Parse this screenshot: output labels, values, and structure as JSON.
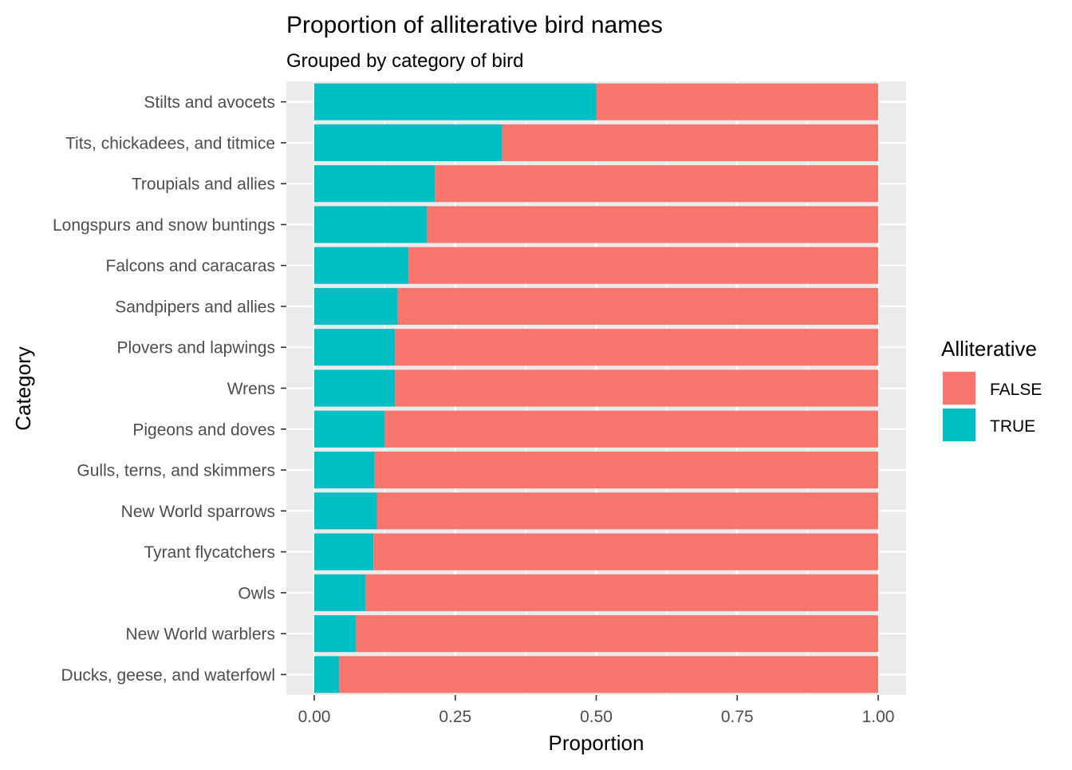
{
  "chart_data": {
    "type": "bar",
    "orientation": "horizontal",
    "stacked": true,
    "title": "Proportion of alliterative bird names",
    "subtitle": "Grouped by category of bird",
    "xlabel": "Proportion",
    "ylabel": "Category",
    "xlim": [
      0,
      1
    ],
    "xticks": [
      "0.00",
      "0.25",
      "0.50",
      "0.75",
      "1.00"
    ],
    "grid": true,
    "legend": {
      "title": "Alliterative",
      "placement": "right",
      "entries": [
        {
          "label": "FALSE",
          "color": "#F8766D"
        },
        {
          "label": "TRUE",
          "color": "#00BFC4"
        }
      ]
    },
    "categories": [
      "Stilts and avocets",
      "Tits, chickadees, and titmice",
      "Troupials and allies",
      "Longspurs and snow buntings",
      "Falcons and caracaras",
      "Sandpipers and allies",
      "Plovers and lapwings",
      "Wrens",
      "Pigeons and doves",
      "Gulls, terns, and skimmers",
      "New World sparrows",
      "Tyrant flycatchers",
      "Owls",
      "New World warblers",
      "Ducks, geese, and waterfowl"
    ],
    "series": [
      {
        "name": "TRUE",
        "color": "#00BFC4",
        "values": [
          0.5,
          0.333,
          0.214,
          0.2,
          0.167,
          0.148,
          0.143,
          0.143,
          0.125,
          0.107,
          0.111,
          0.105,
          0.091,
          0.074,
          0.044
        ]
      },
      {
        "name": "FALSE",
        "color": "#F8766D",
        "values": [
          0.5,
          0.667,
          0.786,
          0.8,
          0.833,
          0.852,
          0.857,
          0.857,
          0.875,
          0.893,
          0.889,
          0.895,
          0.909,
          0.926,
          0.956
        ]
      }
    ]
  }
}
